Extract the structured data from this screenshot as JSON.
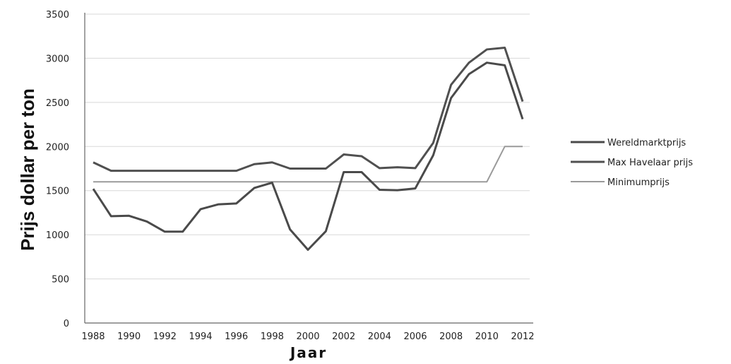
{
  "chart_data": {
    "type": "line",
    "xlabel": "Jaar",
    "ylabel": "Prijs dollar per ton",
    "x": [
      1988,
      1989,
      1990,
      1991,
      1992,
      1993,
      1994,
      1995,
      1996,
      1997,
      1998,
      1999,
      2000,
      2001,
      2002,
      2003,
      2004,
      2005,
      2006,
      2007,
      2008,
      2009,
      2010,
      2011,
      2012
    ],
    "x_ticks": [
      "1988",
      "1990",
      "1992",
      "1994",
      "1996",
      "1998",
      "2000",
      "2002",
      "2004",
      "2006",
      "2008",
      "2010",
      "2012"
    ],
    "y_ticks": [
      "0",
      "500",
      "1000",
      "1500",
      "2000",
      "2500",
      "3000",
      "3500"
    ],
    "ylim": [
      0,
      3500
    ],
    "xlim": [
      1988,
      2012
    ],
    "grid": "horizontal",
    "legend_position": "right",
    "series": [
      {
        "name": "Wereldmarktprijs",
        "color": "#4a4a4a",
        "values": [
          1520,
          1210,
          1215,
          1150,
          1035,
          1035,
          1290,
          1345,
          1355,
          1530,
          1590,
          1060,
          830,
          1040,
          1710,
          1710,
          1510,
          1505,
          1525,
          1900,
          2550,
          2820,
          2950,
          2920,
          2310
        ]
      },
      {
        "name": "Max Havelaar prijs",
        "color": "#505050",
        "values": [
          1820,
          1725,
          1725,
          1725,
          1725,
          1725,
          1725,
          1725,
          1725,
          1800,
          1820,
          1750,
          1750,
          1750,
          1910,
          1890,
          1755,
          1765,
          1755,
          2040,
          2700,
          2950,
          3100,
          3120,
          2510
        ]
      },
      {
        "name": "Minimumprijs",
        "color": "#9a9a9a",
        "values": [
          1600,
          1600,
          1600,
          1600,
          1600,
          1600,
          1600,
          1600,
          1600,
          1600,
          1600,
          1600,
          1600,
          1600,
          1600,
          1600,
          1600,
          1600,
          1600,
          1600,
          1600,
          1600,
          1600,
          2000,
          2000
        ]
      }
    ]
  }
}
